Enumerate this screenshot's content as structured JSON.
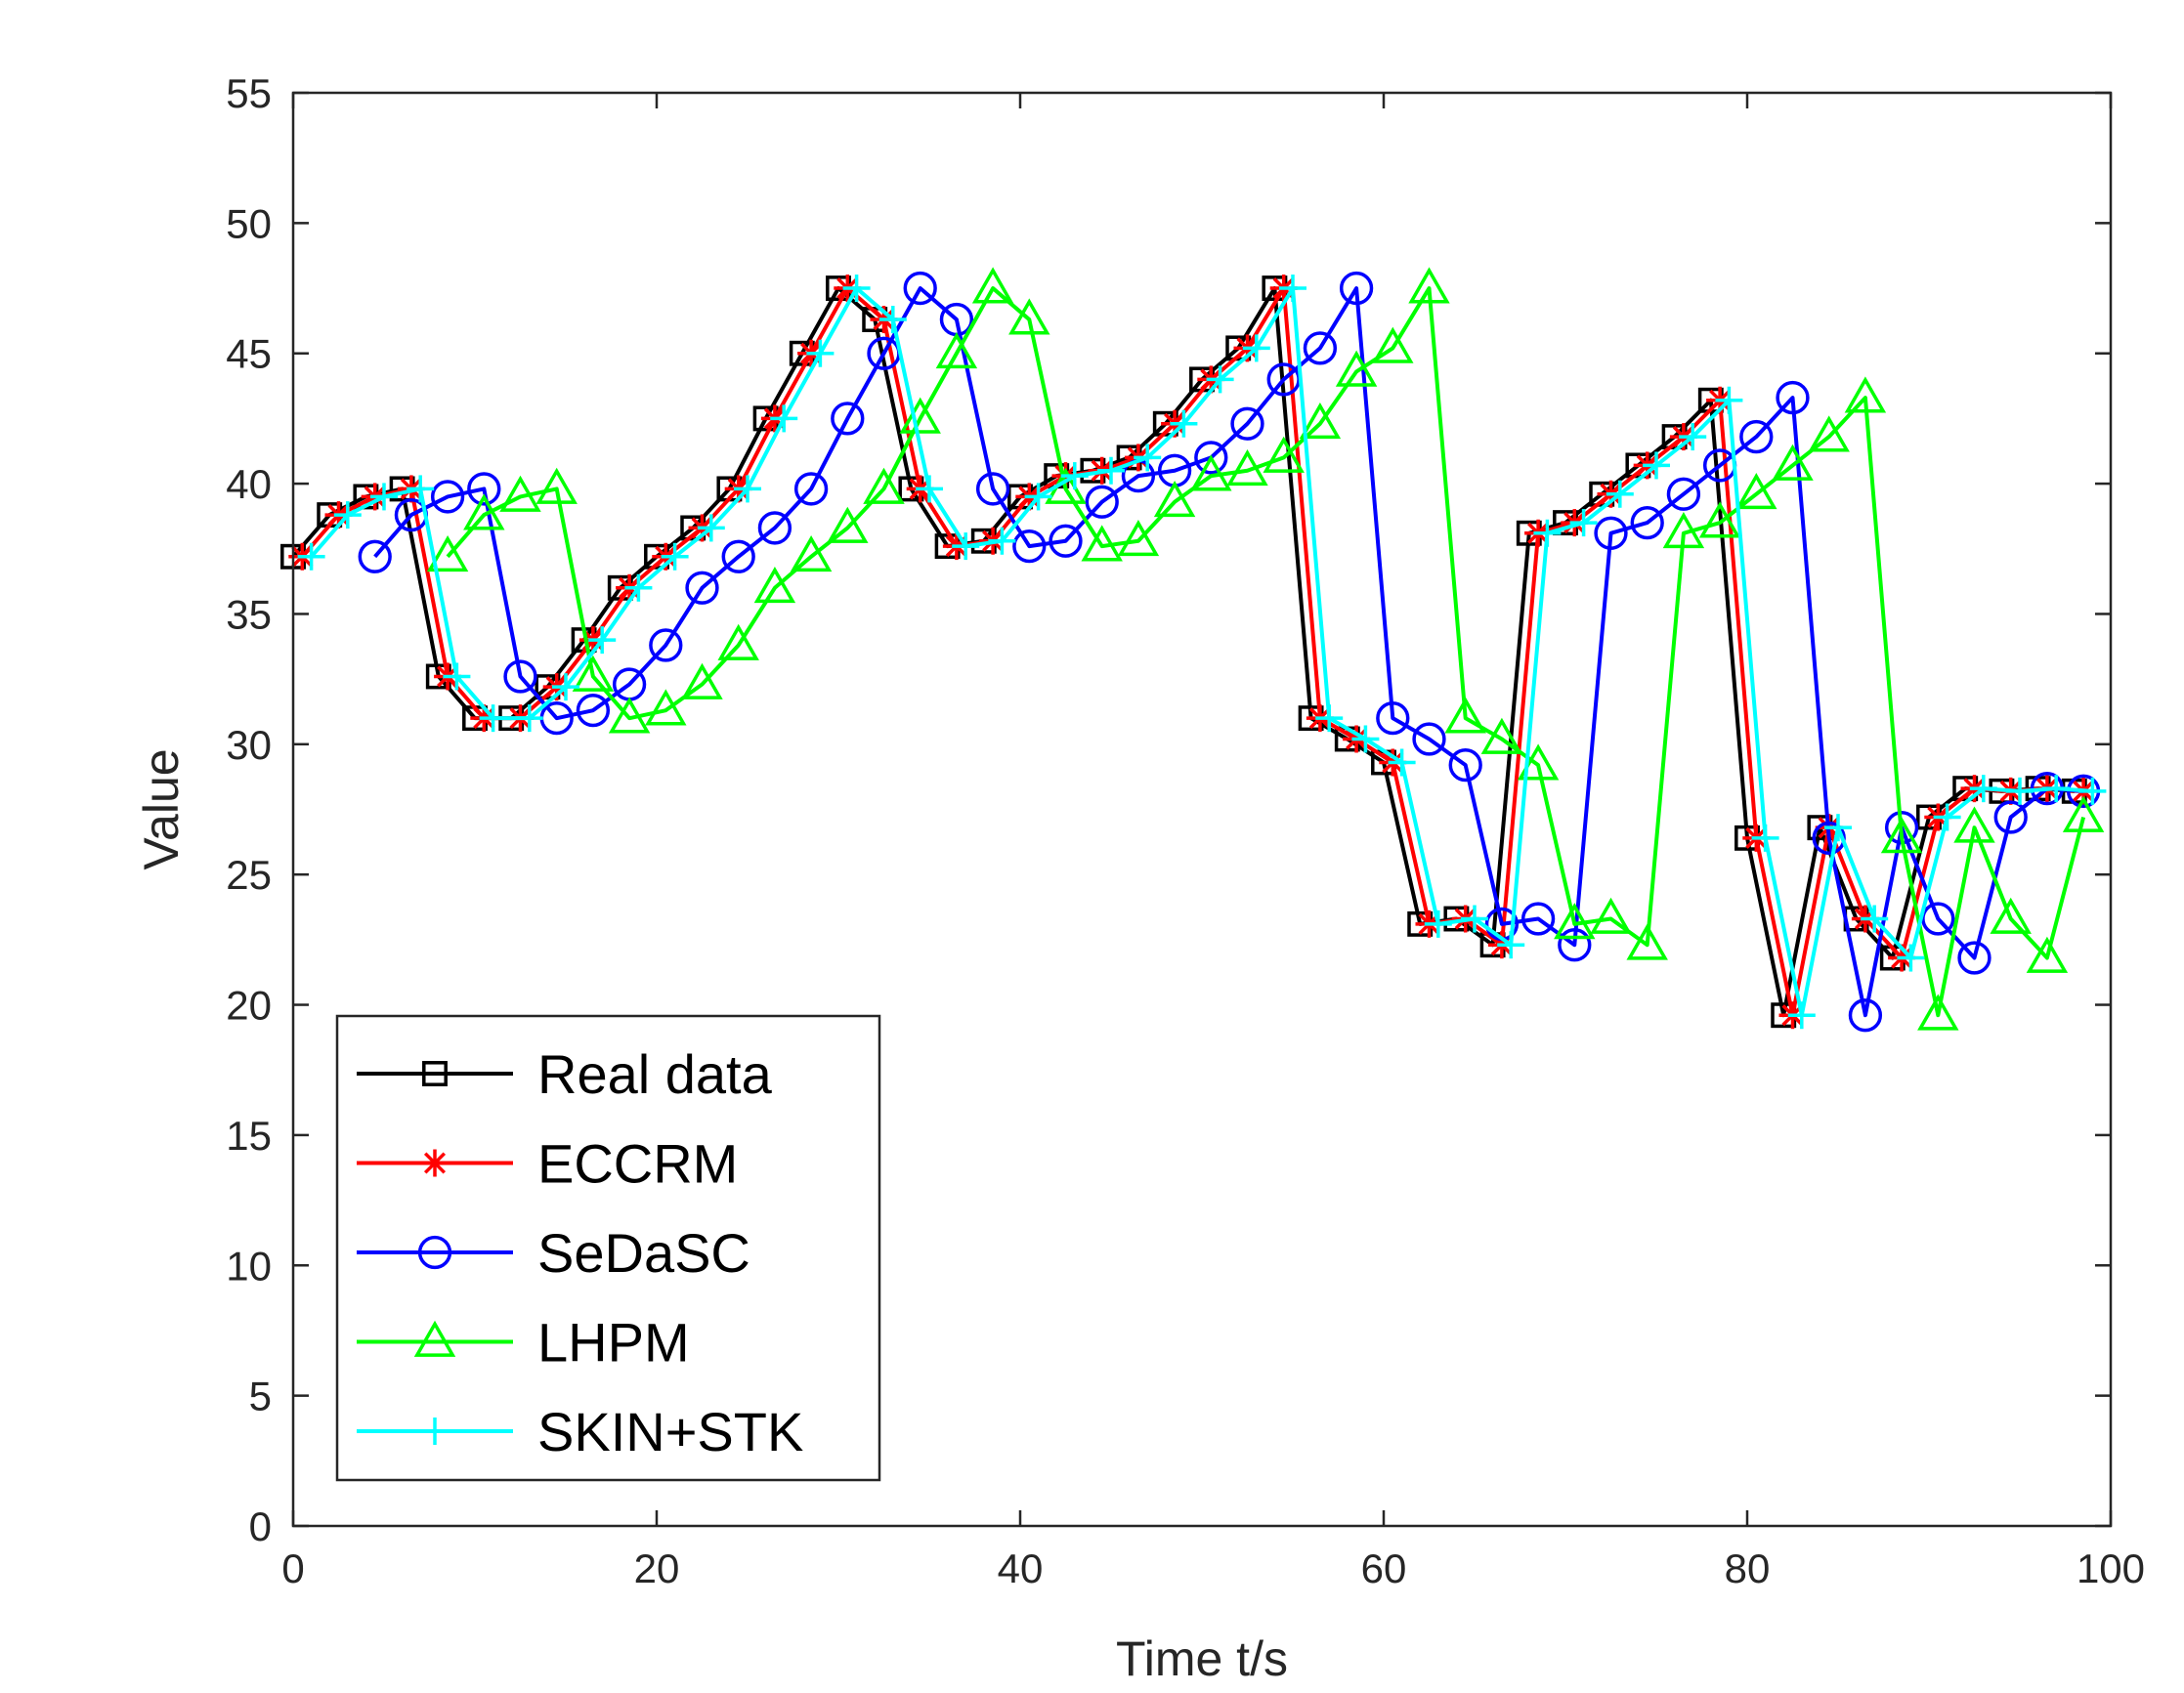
{
  "chart_data": {
    "type": "line",
    "title": "",
    "xlabel": "Time t/s",
    "ylabel": "Value",
    "xlim": [
      0,
      100
    ],
    "ylim": [
      0,
      55
    ],
    "xticks": [
      0,
      20,
      40,
      60,
      80,
      100
    ],
    "yticks": [
      0,
      5,
      10,
      15,
      20,
      25,
      30,
      35,
      40,
      45,
      50,
      55
    ],
    "grid": false,
    "legend_position": "bottom-left",
    "series": [
      {
        "name": "Real data",
        "color": "#000000",
        "marker": "square",
        "x": [
          0,
          2,
          4,
          6,
          8,
          10,
          12,
          14,
          16,
          18,
          20,
          22,
          24,
          26,
          28,
          30,
          32,
          34,
          36,
          38,
          40,
          42,
          44,
          46,
          48,
          50,
          52,
          54,
          56,
          58,
          60,
          62,
          64,
          66,
          68,
          70,
          72,
          74,
          76,
          78,
          80,
          82,
          84,
          86,
          88,
          90,
          92,
          94,
          96,
          98
        ],
        "y": [
          37.2,
          38.8,
          39.5,
          39.8,
          32.6,
          31.0,
          31.0,
          32.2,
          34.0,
          36.0,
          37.2,
          38.3,
          39.8,
          42.5,
          45.0,
          47.5,
          46.3,
          39.8,
          37.6,
          37.8,
          39.5,
          40.3,
          40.5,
          41.0,
          42.3,
          44.0,
          45.2,
          47.5,
          31.0,
          30.2,
          29.3,
          23.1,
          23.3,
          22.3,
          38.1,
          38.5,
          39.6,
          40.7,
          41.8,
          43.2,
          26.4,
          19.6,
          26.8,
          23.3,
          21.8,
          27.2,
          28.3,
          28.2,
          28.3,
          28.2
        ]
      },
      {
        "name": "ECCRM",
        "color": "#ff0000",
        "marker": "asterisk",
        "x": [
          0.5,
          2.5,
          4.5,
          6.5,
          8.5,
          10.5,
          12.5,
          14.5,
          16.5,
          18.5,
          20.5,
          22.5,
          24.5,
          26.5,
          28.5,
          30.5,
          32.5,
          34.5,
          36.5,
          38.5,
          40.5,
          42.5,
          44.5,
          46.5,
          48.5,
          50.5,
          52.5,
          54.5,
          56.5,
          58.5,
          60.5,
          62.5,
          64.5,
          66.5,
          68.5,
          70.5,
          72.5,
          74.5,
          76.5,
          78.5,
          80.5,
          82.5,
          84.5,
          86.5,
          88.5,
          90.5,
          92.5,
          94.5,
          96.5,
          98.5
        ],
        "y": [
          37.2,
          38.8,
          39.5,
          39.8,
          32.6,
          31.0,
          31.0,
          32.2,
          34.0,
          36.0,
          37.2,
          38.3,
          39.8,
          42.5,
          45.0,
          47.5,
          46.3,
          39.8,
          37.6,
          37.8,
          39.5,
          40.3,
          40.5,
          41.0,
          42.3,
          44.0,
          45.2,
          47.5,
          31.0,
          30.2,
          29.3,
          23.1,
          23.3,
          22.3,
          38.1,
          38.5,
          39.6,
          40.7,
          41.8,
          43.2,
          26.4,
          19.6,
          26.8,
          23.3,
          21.8,
          27.2,
          28.3,
          28.2,
          28.3,
          28.2
        ]
      },
      {
        "name": "SeDaSC",
        "color": "#0000ff",
        "marker": "circle",
        "x": [
          4.5,
          6.5,
          8.5,
          10.5,
          12.5,
          14.5,
          16.5,
          18.5,
          20.5,
          22.5,
          24.5,
          26.5,
          28.5,
          30.5,
          32.5,
          34.5,
          36.5,
          38.5,
          40.5,
          42.5,
          44.5,
          46.5,
          48.5,
          50.5,
          52.5,
          54.5,
          56.5,
          58.5,
          60.5,
          62.5,
          64.5,
          66.5,
          68.5,
          70.5,
          72.5,
          74.5,
          76.5,
          78.5,
          80.5,
          82.5,
          84.5,
          86.5,
          88.5,
          90.5,
          92.5,
          94.5,
          96.5,
          98.5
        ],
        "y": [
          37.2,
          38.8,
          39.5,
          39.8,
          32.6,
          31.0,
          31.3,
          32.3,
          33.8,
          36.0,
          37.2,
          38.3,
          39.8,
          42.5,
          45.0,
          47.5,
          46.3,
          39.8,
          37.6,
          37.8,
          39.3,
          40.3,
          40.5,
          41.0,
          42.3,
          44.0,
          45.2,
          47.5,
          31.0,
          30.2,
          29.2,
          23.1,
          23.3,
          22.3,
          38.1,
          38.5,
          39.6,
          40.7,
          41.8,
          43.3,
          26.4,
          19.6,
          26.8,
          23.3,
          21.8,
          27.2,
          28.3,
          28.2
        ]
      },
      {
        "name": "LHPM",
        "color": "#00ff00",
        "marker": "triangle",
        "x": [
          8.5,
          10.5,
          12.5,
          14.5,
          16.5,
          18.5,
          20.5,
          22.5,
          24.5,
          26.5,
          28.5,
          30.5,
          32.5,
          34.5,
          36.5,
          38.5,
          40.5,
          42.5,
          44.5,
          46.5,
          48.5,
          50.5,
          52.5,
          54.5,
          56.5,
          58.5,
          60.5,
          62.5,
          64.5,
          66.5,
          68.5,
          70.5,
          72.5,
          74.5,
          76.5,
          78.5,
          80.5,
          82.5,
          84.5,
          86.5,
          88.5,
          90.5,
          92.5,
          94.5,
          96.5,
          98.5
        ],
        "y": [
          37.2,
          38.8,
          39.5,
          39.8,
          32.6,
          31.0,
          31.3,
          32.3,
          33.8,
          36.0,
          37.2,
          38.3,
          39.8,
          42.5,
          45.0,
          47.5,
          46.3,
          39.8,
          37.6,
          37.8,
          39.3,
          40.3,
          40.5,
          41.0,
          42.3,
          44.3,
          45.2,
          47.5,
          31.0,
          30.2,
          29.2,
          23.1,
          23.3,
          22.3,
          38.1,
          38.5,
          39.6,
          40.7,
          41.8,
          43.3,
          26.4,
          19.6,
          26.8,
          23.3,
          21.8,
          27.2
        ]
      },
      {
        "name": "SKIN+STK",
        "color": "#00ffff",
        "marker": "plus",
        "x": [
          1,
          3,
          5,
          7,
          9,
          11,
          13,
          15,
          17,
          19,
          21,
          23,
          25,
          27,
          29,
          31,
          33,
          35,
          37,
          39,
          41,
          43,
          45,
          47,
          49,
          51,
          53,
          55,
          57,
          59,
          61,
          63,
          65,
          67,
          69,
          71,
          73,
          75,
          77,
          79,
          81,
          83,
          85,
          87,
          89,
          91,
          93,
          95,
          97,
          99
        ],
        "y": [
          37.2,
          38.8,
          39.5,
          39.8,
          32.6,
          31.0,
          31.0,
          32.2,
          34.0,
          36.0,
          37.2,
          38.3,
          39.8,
          42.5,
          45.0,
          47.5,
          46.3,
          39.8,
          37.6,
          37.8,
          39.5,
          40.3,
          40.5,
          41.0,
          42.3,
          44.0,
          45.2,
          47.5,
          31.0,
          30.2,
          29.3,
          23.1,
          23.3,
          22.3,
          38.1,
          38.5,
          39.6,
          40.7,
          41.8,
          43.2,
          26.4,
          19.6,
          26.8,
          23.3,
          21.8,
          27.2,
          28.3,
          28.2,
          28.3,
          28.2
        ]
      }
    ]
  }
}
